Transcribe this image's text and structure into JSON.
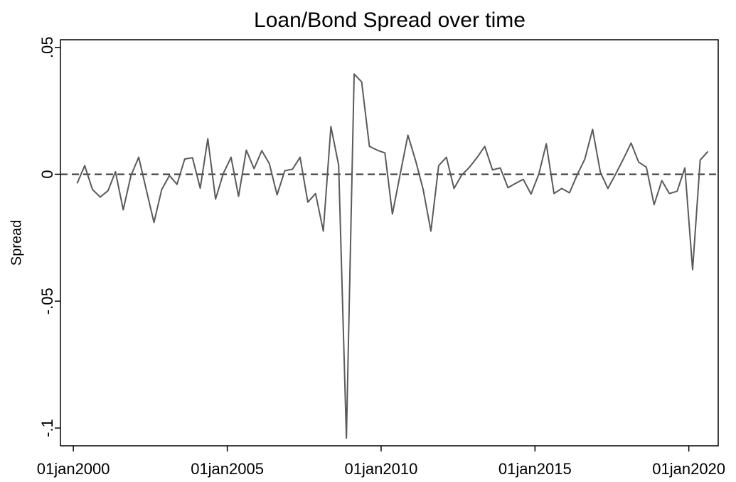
{
  "chart_data": {
    "type": "line",
    "title": "Loan/Bond Spread over time",
    "ylabel": "Spread",
    "x": [
      "2000-02-15",
      "2000-05-15",
      "2000-08-15",
      "2000-11-15",
      "2001-02-15",
      "2001-05-15",
      "2001-08-15",
      "2001-11-15",
      "2002-02-15",
      "2002-05-15",
      "2002-08-15",
      "2002-11-15",
      "2003-02-15",
      "2003-05-15",
      "2003-08-15",
      "2003-11-15",
      "2004-02-15",
      "2004-05-15",
      "2004-08-15",
      "2004-11-15",
      "2005-02-15",
      "2005-05-15",
      "2005-08-15",
      "2005-11-15",
      "2006-02-15",
      "2006-05-15",
      "2006-08-15",
      "2006-11-15",
      "2007-02-15",
      "2007-05-15",
      "2007-08-15",
      "2007-11-15",
      "2008-02-15",
      "2008-05-15",
      "2008-08-15",
      "2008-11-15",
      "2009-02-15",
      "2009-05-15",
      "2009-08-15",
      "2009-11-15",
      "2010-02-15",
      "2010-05-15",
      "2010-08-15",
      "2010-11-15",
      "2011-02-15",
      "2011-05-15",
      "2011-08-15",
      "2011-11-15",
      "2012-02-15",
      "2012-05-15",
      "2012-08-15",
      "2012-11-15",
      "2013-02-15",
      "2013-05-15",
      "2013-08-15",
      "2013-11-15",
      "2014-02-15",
      "2014-05-15",
      "2014-08-15",
      "2014-11-15",
      "2015-02-15",
      "2015-05-15",
      "2015-08-15",
      "2015-11-15",
      "2016-02-15",
      "2016-05-15",
      "2016-08-15",
      "2016-11-15",
      "2017-02-15",
      "2017-05-15",
      "2017-08-15",
      "2017-11-15",
      "2018-02-15",
      "2018-05-15",
      "2018-08-15",
      "2018-11-15",
      "2019-02-15",
      "2019-05-15",
      "2019-08-15",
      "2019-11-15",
      "2020-02-15",
      "2020-05-15",
      "2020-08-15"
    ],
    "series": [
      {
        "name": "Spread",
        "color": "#5a5a5a",
        "values": [
          -0.0036,
          0.0034,
          -0.006,
          -0.009,
          -0.0065,
          0.001,
          -0.014,
          -0.0005,
          0.0067,
          -0.006,
          -0.019,
          -0.006,
          -0.0005,
          -0.004,
          0.006,
          0.0065,
          -0.0055,
          0.014,
          -0.0098,
          0.0003,
          0.0067,
          -0.0087,
          0.0095,
          0.0022,
          0.0093,
          0.0042,
          -0.0081,
          0.0014,
          0.002,
          0.0067,
          -0.011,
          -0.0076,
          -0.0224,
          0.0188,
          0.0036,
          -0.104,
          0.0395,
          0.0364,
          0.011,
          0.0095,
          0.0084,
          -0.0157,
          0,
          0.0154,
          0.0053,
          -0.006,
          -0.0224,
          0.0034,
          0.0067,
          -0.0056,
          -0.0003,
          0.0028,
          0.0067,
          0.011,
          0.0017,
          0.0025,
          -0.0053,
          -0.0036,
          -0.002,
          -0.0078,
          0,
          0.012,
          -0.0076,
          -0.0056,
          -0.0073,
          -0.0003,
          0.006,
          0.0177,
          0.0008,
          -0.0056,
          0,
          0.006,
          0.0123,
          0.0048,
          0.0028,
          -0.012,
          -0.0025,
          -0.0076,
          -0.0067,
          0.0025,
          -0.0376,
          0.0056,
          0.009
        ]
      }
    ],
    "xlim": [
      "1999-08-01",
      "2020-12-15"
    ],
    "xticks": [
      {
        "value": "2000-01-01",
        "label": "01jan2000"
      },
      {
        "value": "2005-01-01",
        "label": "01jan2005"
      },
      {
        "value": "2010-01-01",
        "label": "01jan2010"
      },
      {
        "value": "2015-01-01",
        "label": "01jan2015"
      },
      {
        "value": "2020-01-01",
        "label": "01jan2020"
      }
    ],
    "ylim": [
      -0.107,
      0.053
    ],
    "yticks": [
      {
        "value": -0.1,
        "label": "-.1"
      },
      {
        "value": -0.05,
        "label": "-.05"
      },
      0,
      {
        "value": 0.05,
        "label": ".05"
      }
    ],
    "reference_line": {
      "value": 0,
      "style": "dashed"
    }
  }
}
